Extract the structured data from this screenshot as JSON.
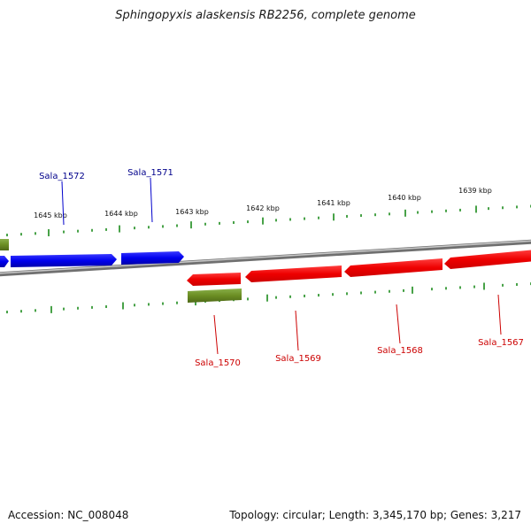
{
  "title": "Sphingopyxis alaskensis RB2256, complete genome",
  "footer": {
    "accession": "Accession: NC_008048",
    "summary": "Topology: circular; Length: 3,345,170 bp; Genes: 3,217"
  },
  "colors": {
    "forward_gene": "#0000ee",
    "reverse_gene": "#ee0000",
    "rna_feature": "#6b8e23",
    "ticks": "#1a8a1a",
    "backbone": "#808080",
    "gene_label_forward": "#00008b",
    "gene_label_reverse": "#cc0000"
  },
  "scale": {
    "unit": "kbp",
    "labels": [
      "1645 kbp",
      "1644 kbp",
      "1643 kbp",
      "1642 kbp",
      "1641 kbp",
      "1640 kbp",
      "1639 kbp"
    ]
  },
  "genes": [
    {
      "name": "Sala_1572",
      "strand": "forward"
    },
    {
      "name": "Sala_1571",
      "strand": "forward"
    },
    {
      "name": "Sala_1570",
      "strand": "reverse"
    },
    {
      "name": "Sala_1569",
      "strand": "reverse"
    },
    {
      "name": "Sala_1568",
      "strand": "reverse"
    },
    {
      "name": "Sala_1567",
      "strand": "reverse"
    }
  ]
}
